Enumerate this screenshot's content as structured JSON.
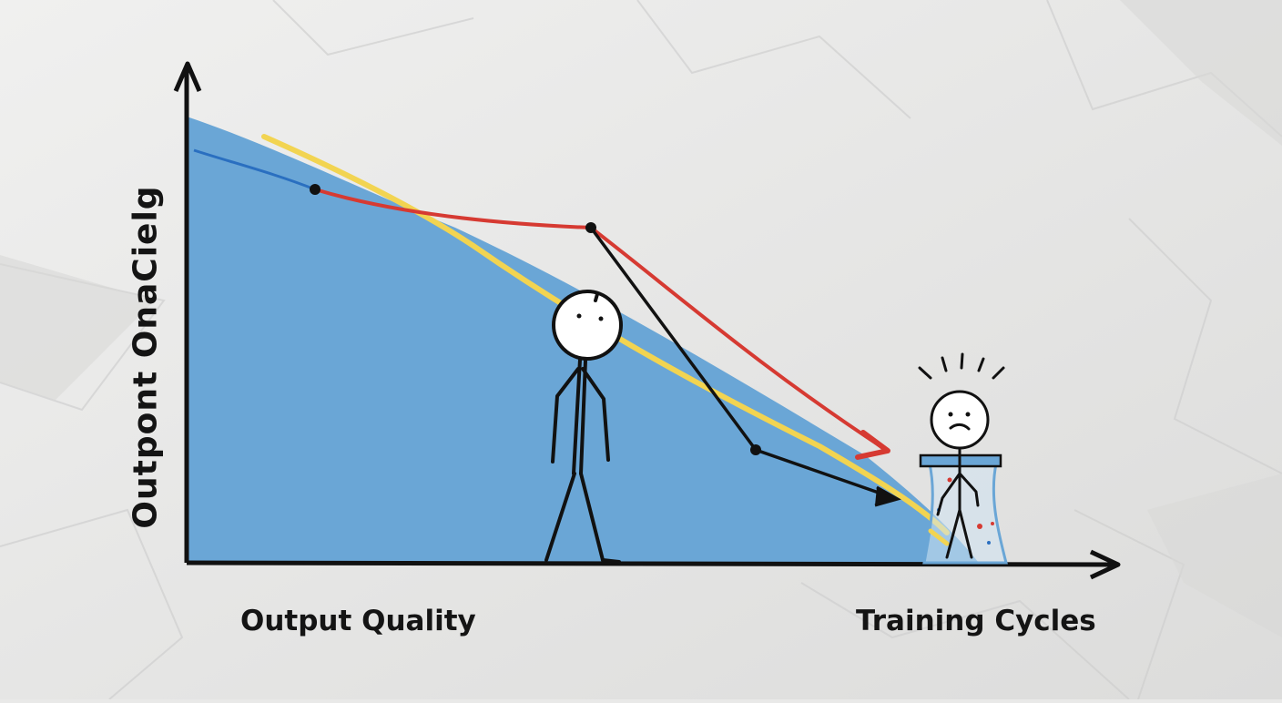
{
  "diagram": {
    "y_axis_label": "Outpont  OnaCielg",
    "x_axis_label_left": "Output Quality",
    "x_axis_label_right": "Training Cycles",
    "colors": {
      "paper": "#e9e9e8",
      "area_fill": "#6aa6d6",
      "yellow_line": "#f2d451",
      "red_arrow": "#d63a32",
      "blue_line": "#2a6fc0",
      "ink": "#111111"
    },
    "figures": [
      "calm-stick-figure",
      "worried-stick-figure-in-glass"
    ]
  }
}
